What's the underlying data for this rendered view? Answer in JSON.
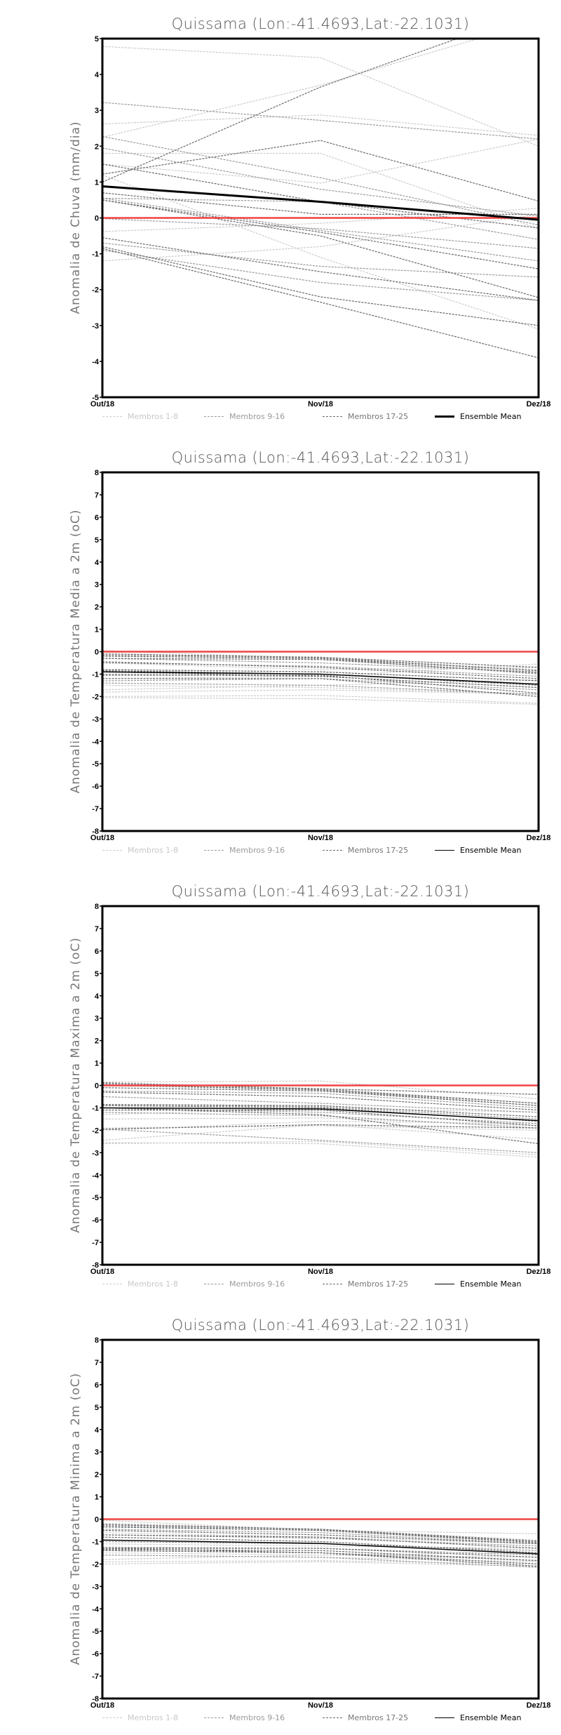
{
  "colors": {
    "light": "#cccccc",
    "medium": "#9a9a9a",
    "dark": "#6a6a6a",
    "mean": "#000000",
    "zero": "#ee4444"
  },
  "legend": [
    "Membros 1-8",
    "Membros 9-16",
    "Membros 17-25",
    "Ensemble Mean"
  ],
  "chart_data": [
    {
      "type": "line",
      "title": "Quissama (Lon:-41.4693,Lat:-22.1031)",
      "ylabel": "Anomalia de Chuva (mm/dia)",
      "categories": [
        "Out/18",
        "Nov/18",
        "Dez/18"
      ],
      "ylim": [
        -5,
        5
      ],
      "yticks": [
        "-5",
        "-4",
        "-3",
        "-2",
        "-1",
        "0",
        "1",
        "2",
        "3",
        "4",
        "5"
      ],
      "ensemble_mean": [
        0.88,
        0.45,
        -0.05
      ],
      "members_1_8": [
        [
          4.78,
          4.47,
          2.0
        ],
        [
          2.25,
          3.7,
          5.5
        ],
        [
          2.62,
          2.87,
          2.3
        ],
        [
          1.8,
          1.8,
          -0.3
        ],
        [
          1.2,
          -1.1,
          -3.1
        ],
        [
          -0.38,
          -0.15,
          0.27
        ],
        [
          -1.2,
          -0.8,
          0.1
        ],
        [
          1.5,
          0.97,
          2.2
        ]
      ],
      "members_9_16": [
        [
          3.22,
          2.72,
          2.2
        ],
        [
          2.27,
          1.12,
          -0.2
        ],
        [
          1.95,
          0.8,
          0.05
        ],
        [
          0.55,
          0.45,
          -0.6
        ],
        [
          0.55,
          -0.35,
          -1.2
        ],
        [
          -0.02,
          -0.3,
          -0.85
        ],
        [
          -0.7,
          -1.35,
          -1.65
        ],
        [
          -0.9,
          -1.8,
          -2.3
        ]
      ],
      "members_17_25": [
        [
          1.0,
          3.65,
          5.8
        ],
        [
          1.22,
          2.16,
          0.47
        ],
        [
          1.5,
          0.45,
          -0.28
        ],
        [
          0.5,
          -0.4,
          -1.42
        ],
        [
          0.5,
          -0.5,
          -2.22
        ],
        [
          -0.55,
          -1.5,
          -2.3
        ],
        [
          -0.8,
          -2.2,
          -3.0
        ],
        [
          -0.85,
          -2.35,
          -3.9
        ],
        [
          0.7,
          0.1,
          0.1
        ]
      ]
    },
    {
      "type": "line",
      "title": "Quissama (Lon:-41.4693,Lat:-22.1031)",
      "ylabel": "Anomalia de Temperatura Media a 2m (oC)",
      "categories": [
        "Out/18",
        "Nov/18",
        "Dez/18"
      ],
      "ylim": [
        -8,
        8
      ],
      "yticks": [
        "-8",
        "-7",
        "-6",
        "-5",
        "-4",
        "-3",
        "-2",
        "-1",
        "0",
        "1",
        "2",
        "3",
        "4",
        "5",
        "6",
        "7",
        "8"
      ],
      "ensemble_mean": [
        -0.9,
        -1.0,
        -1.45
      ],
      "members_1_8": [
        [
          -1.5,
          -1.6,
          -1.9
        ],
        [
          -1.8,
          -1.7,
          -1.9
        ],
        [
          -2.0,
          -1.95,
          -2.3
        ],
        [
          -2.05,
          -2.1,
          -2.35
        ],
        [
          -1.2,
          -1.1,
          -0.55
        ],
        [
          -0.5,
          -0.8,
          -0.7
        ],
        [
          -1.7,
          -1.5,
          -1.25
        ],
        [
          0.05,
          -0.3,
          -0.8
        ]
      ],
      "members_9_16": [
        [
          -0.15,
          -0.25,
          -0.85
        ],
        [
          -0.2,
          -0.3,
          -1.0
        ],
        [
          -0.3,
          -0.5,
          -0.9
        ],
        [
          -0.5,
          -0.65,
          -1.1
        ],
        [
          -0.8,
          -0.9,
          -1.3
        ],
        [
          -1.0,
          -1.1,
          -1.6
        ],
        [
          -1.3,
          -1.2,
          -1.7
        ],
        [
          -1.4,
          -1.5,
          -1.9
        ]
      ],
      "members_17_25": [
        [
          -0.1,
          -0.25,
          -0.7
        ],
        [
          -0.2,
          -0.3,
          -0.85
        ],
        [
          -0.3,
          -0.35,
          -0.95
        ],
        [
          -0.45,
          -0.7,
          -1.2
        ],
        [
          -0.8,
          -0.9,
          -1.3
        ],
        [
          -0.85,
          -1.0,
          -1.5
        ],
        [
          -0.9,
          -1.1,
          -1.6
        ],
        [
          -1.05,
          -1.05,
          -1.85
        ],
        [
          -1.2,
          -1.2,
          -2.0
        ]
      ]
    },
    {
      "type": "line",
      "title": "Quissama (Lon:-41.4693,Lat:-22.1031)",
      "ylabel": "Anomalia de Temperatura Maxima a 2m (oC)",
      "categories": [
        "Out/18",
        "Nov/18",
        "Dez/18"
      ],
      "ylim": [
        -8,
        8
      ],
      "yticks": [
        "-8",
        "-7",
        "-6",
        "-5",
        "-4",
        "-3",
        "-2",
        "-1",
        "0",
        "1",
        "2",
        "3",
        "4",
        "5",
        "6",
        "7",
        "8"
      ],
      "ensemble_mean": [
        -1.0,
        -1.05,
        -1.57
      ],
      "members_1_8": [
        [
          -2.45,
          -1.75,
          -2.4
        ],
        [
          -2.6,
          -2.5,
          -3.1
        ],
        [
          -2.55,
          -2.6,
          -3.2
        ],
        [
          0.15,
          0.2,
          -0.6
        ],
        [
          -1.3,
          -1.0,
          -1.2
        ],
        [
          -1.9,
          -1.8,
          -2.0
        ],
        [
          -1.5,
          -1.45,
          -1.8
        ],
        [
          -2.0,
          -1.6,
          -1.7
        ]
      ],
      "members_9_16": [
        [
          0.1,
          -0.15,
          -0.8
        ],
        [
          0.0,
          -0.2,
          -0.9
        ],
        [
          -0.25,
          -0.35,
          -1.0
        ],
        [
          -0.5,
          -0.8,
          -1.2
        ],
        [
          -0.85,
          -0.95,
          -1.5
        ],
        [
          -1.0,
          -1.2,
          -1.7
        ],
        [
          -1.2,
          -1.35,
          -1.9
        ],
        [
          -1.95,
          -2.45,
          -3.0
        ]
      ],
      "members_17_25": [
        [
          0.12,
          -0.15,
          -0.4
        ],
        [
          0.05,
          -0.2,
          -0.8
        ],
        [
          -0.1,
          -0.25,
          -0.9
        ],
        [
          -0.3,
          -0.5,
          -1.1
        ],
        [
          -0.85,
          -0.9,
          -1.4
        ],
        [
          -0.9,
          -1.0,
          -1.6
        ],
        [
          -1.1,
          -1.1,
          -1.8
        ],
        [
          -1.0,
          -1.3,
          -2.6
        ],
        [
          -1.95,
          -1.75,
          -1.9
        ]
      ]
    },
    {
      "type": "line",
      "title": "Quissama (Lon:-41.4693,Lat:-22.1031)",
      "ylabel": "Anomalia de Temperatura Minima a 2m (oC)",
      "categories": [
        "Out/18",
        "Nov/18",
        "Dez/18"
      ],
      "ylim": [
        -8,
        8
      ],
      "yticks": [
        "-8",
        "-7",
        "-6",
        "-5",
        "-4",
        "-3",
        "-2",
        "-1",
        "0",
        "1",
        "2",
        "3",
        "4",
        "5",
        "6",
        "7",
        "8"
      ],
      "ensemble_mean": [
        -0.93,
        -1.08,
        -1.55
      ],
      "members_1_8": [
        [
          -0.05,
          -0.5,
          -0.65
        ],
        [
          -1.6,
          -1.7,
          -1.9
        ],
        [
          -1.9,
          -1.85,
          -2.0
        ],
        [
          -2.0,
          -1.9,
          -2.1
        ],
        [
          -1.8,
          -1.6,
          -1.5
        ],
        [
          -0.6,
          -0.8,
          -1.1
        ],
        [
          -1.1,
          -1.2,
          -1.3
        ],
        [
          -1.5,
          -1.6,
          -1.7
        ]
      ],
      "members_9_16": [
        [
          -0.2,
          -0.45,
          -0.95
        ],
        [
          -0.3,
          -0.5,
          -1.0
        ],
        [
          -0.45,
          -0.6,
          -1.1
        ],
        [
          -0.7,
          -0.85,
          -1.2
        ],
        [
          -1.0,
          -1.1,
          -1.4
        ],
        [
          -1.25,
          -1.3,
          -1.6
        ],
        [
          -1.4,
          -1.5,
          -1.85
        ],
        [
          -1.6,
          -1.7,
          -2.15
        ]
      ],
      "members_17_25": [
        [
          -0.25,
          -0.45,
          -1.0
        ],
        [
          -0.35,
          -0.5,
          -1.05
        ],
        [
          -0.5,
          -0.7,
          -1.1
        ],
        [
          -0.7,
          -0.8,
          -1.3
        ],
        [
          -0.8,
          -1.0,
          -1.5
        ],
        [
          -1.3,
          -1.3,
          -1.7
        ],
        [
          -1.35,
          -1.4,
          -1.85
        ],
        [
          -1.3,
          -1.5,
          -2.0
        ],
        [
          -1.4,
          -1.5,
          -2.1
        ]
      ]
    }
  ]
}
